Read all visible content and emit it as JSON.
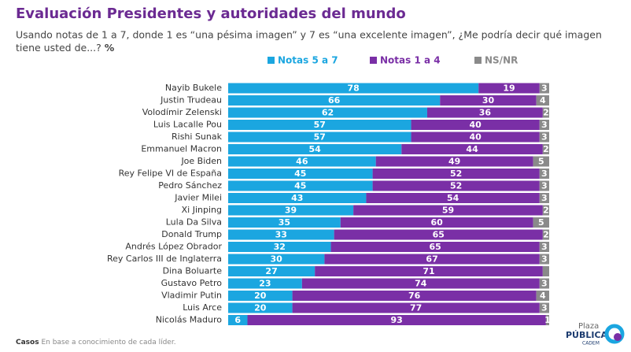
{
  "chart_data": {
    "type": "stacked-bar-horizontal",
    "title": "Evaluación Presidentes y autoridades del mundo",
    "subtitle_line1": "Usando notas de 1 a 7, donde 1 es “una pésima imagen” y 7 es “una excelente imagen”, ¿Me podría decir qué imagen",
    "subtitle_line2": "tiene usted de...?",
    "unit": "%",
    "categories": [
      "Nayib Bukele",
      "Justin Trudeau",
      "Volodímir Zelenski",
      "Luis Lacalle Pou",
      "Rishi Sunak",
      "Emmanuel Macron",
      "Joe Biden",
      "Rey Felipe VI de España",
      "Pedro Sánchez",
      "Javier Milei",
      "Xi Jinping",
      "Lula Da Silva",
      "Donald Trump",
      "Andrés López Obrador",
      "Rey Carlos III de Inglaterra",
      "Dina Boluarte",
      "Gustavo Petro",
      "Vladimir Putin",
      "Luis Arce",
      "Nicolás Maduro"
    ],
    "xlim": [
      0,
      100
    ],
    "series": [
      {
        "name": "Notas 5 a 7",
        "color": "#1ba6e0",
        "values": [
          78,
          66,
          62,
          57,
          57,
          54,
          46,
          45,
          45,
          43,
          39,
          35,
          33,
          32,
          30,
          27,
          23,
          20,
          20,
          6
        ]
      },
      {
        "name": "Notas 1 a 4",
        "color": "#7a2fa6",
        "values": [
          19,
          30,
          36,
          40,
          40,
          44,
          49,
          52,
          52,
          54,
          59,
          60,
          65,
          65,
          67,
          71,
          74,
          76,
          77,
          93
        ]
      },
      {
        "name": "NS/NR",
        "color": "#8a8a8a",
        "values": [
          3,
          4,
          2,
          3,
          3,
          2,
          5,
          3,
          3,
          3,
          2,
          5,
          2,
          3,
          3,
          2,
          3,
          4,
          3,
          1
        ],
        "value_labels": [
          "3",
          "4",
          "2",
          "3",
          "3",
          "2",
          "5",
          "3",
          "3",
          "3",
          "2",
          "5",
          "2",
          "3",
          "3",
          null,
          "3",
          "4",
          "3",
          "1"
        ]
      }
    ],
    "footer_bold": "Casos",
    "footer": "En base a conocimiento de cada líder.",
    "logo_top": "Plaza",
    "logo_main": "PÚBLICA",
    "logo_sub": "CADEM"
  }
}
